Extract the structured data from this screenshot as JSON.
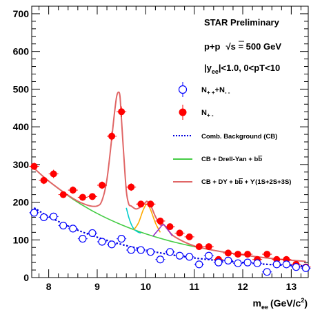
{
  "chart_data": {
    "type": "scatter",
    "xlabel": "m",
    "xlabel_sub": "ee",
    "xlabel_unit": "(GeV/c",
    "xlabel_sup": "2",
    "xlabel_close": ")",
    "xlim": [
      7.65,
      13.35
    ],
    "ylim": [
      0,
      720
    ],
    "x_ticks": [
      "8",
      "9",
      "10",
      "11",
      "12",
      "13"
    ],
    "x_tick_values": [
      8,
      9,
      10,
      11,
      12,
      13
    ],
    "y_ticks": [
      "0",
      "100",
      "200",
      "300",
      "400",
      "500",
      "600",
      "700"
    ],
    "y_tick_values": [
      0,
      100,
      200,
      300,
      400,
      500,
      600,
      700
    ],
    "grid": false,
    "legend_position": "right",
    "annotations": {
      "experiment": "STAR Preliminary",
      "system_prefix": "p+p",
      "sqrt": "√",
      "system_s": "s",
      "system_energy": " = 500 GeV",
      "cut_y_open": "|y",
      "cut_y_sub": "ee",
      "cut_rest": "|<1.0, 0<pT<10"
    },
    "legend": {
      "like_sign": {
        "n1": "N",
        "s1": "+ +",
        "plus": "+N",
        "s2": "- -"
      },
      "unlike_sign": {
        "n": "N",
        "s": "+ -"
      },
      "cb": "Comb. Background (CB)",
      "dy": {
        "prefix": "CB + Drell-Yan + b",
        "bbar": "b"
      },
      "full": {
        "prefix": "CB + DY + b",
        "bbar": "b",
        "mid": " + ",
        "upsilon": "ϒ",
        "suffix": "(1S+2S+3S)"
      }
    },
    "colors": {
      "unlike_sign": "#ff0000",
      "like_sign": "#0000ff",
      "cb": "#0000dd",
      "dy": "#44cc44",
      "full": "#e06666",
      "ups1s": "#00cccc",
      "ups2s": "#ffaa00",
      "ups3s": "#9933cc"
    },
    "series": [
      {
        "name": "N+-",
        "marker": "filled-circle",
        "x": [
          7.7,
          7.9,
          8.1,
          8.3,
          8.5,
          8.7,
          8.9,
          9.1,
          9.3,
          9.5,
          9.7,
          9.9,
          10.1,
          10.3,
          10.5,
          10.7,
          10.9,
          11.1,
          11.3,
          11.5,
          11.7,
          11.9,
          12.1,
          12.3,
          12.5,
          12.7,
          12.9,
          13.1,
          13.3
        ],
        "y": [
          295,
          258,
          275,
          220,
          232,
          213,
          215,
          245,
          375,
          440,
          240,
          195,
          195,
          150,
          135,
          118,
          108,
          82,
          82,
          48,
          65,
          62,
          62,
          48,
          62,
          48,
          48,
          35,
          28
        ],
        "yerr": [
          10,
          10,
          11,
          9,
          10,
          9,
          9,
          10,
          12,
          14,
          10,
          9,
          9,
          8,
          7,
          7,
          6,
          5,
          5,
          4,
          5,
          5,
          5,
          4,
          5,
          4,
          4,
          3,
          3
        ]
      },
      {
        "name": "N++ + N--",
        "marker": "open-circle",
        "x": [
          7.7,
          7.9,
          8.1,
          8.3,
          8.5,
          8.7,
          8.9,
          9.1,
          9.3,
          9.5,
          9.7,
          9.9,
          10.1,
          10.3,
          10.5,
          10.7,
          10.9,
          11.1,
          11.3,
          11.5,
          11.7,
          11.9,
          12.1,
          12.3,
          12.5,
          12.7,
          12.9,
          13.1,
          13.3
        ],
        "y": [
          172,
          160,
          162,
          138,
          130,
          103,
          118,
          95,
          88,
          103,
          73,
          73,
          68,
          48,
          68,
          58,
          55,
          35,
          58,
          40,
          45,
          38,
          40,
          38,
          15,
          35,
          35,
          28,
          25
        ],
        "yerr": [
          10,
          10,
          10,
          9,
          9,
          8,
          8,
          8,
          7,
          8,
          7,
          7,
          7,
          6,
          7,
          6,
          6,
          5,
          6,
          5,
          5,
          5,
          5,
          5,
          4,
          5,
          5,
          4,
          4
        ]
      }
    ],
    "curves": [
      {
        "name": "Comb. Background (CB)",
        "style": "dotted",
        "x": [
          7.7,
          8.0,
          8.5,
          9.0,
          9.5,
          10.0,
          10.5,
          11.0,
          11.5,
          12.0,
          12.5,
          13.0,
          13.3
        ],
        "y": [
          185,
          162,
          131,
          107,
          88,
          73,
          61,
          52,
          45,
          40,
          35,
          32,
          31
        ]
      },
      {
        "name": "CB + Drell-Yan + bb",
        "style": "solid",
        "x": [
          7.7,
          8.0,
          8.5,
          9.0,
          9.5,
          10.0,
          10.5,
          11.0,
          11.5,
          12.0,
          12.5,
          13.0,
          13.3
        ],
        "y": [
          290,
          256,
          208,
          170,
          140,
          116,
          97,
          82,
          70,
          60,
          52,
          46,
          43
        ]
      },
      {
        "name": "CB + DY + bb + Upsilon(1S+2S+3S)",
        "style": "solid",
        "x": [
          7.7,
          8.0,
          8.5,
          8.8,
          9.0,
          9.1,
          9.2,
          9.3,
          9.35,
          9.4,
          9.44,
          9.47,
          9.5,
          9.55,
          9.6,
          9.65,
          9.7,
          9.8,
          9.9,
          10.0,
          10.03,
          10.1,
          10.2,
          10.3,
          10.36,
          10.45,
          10.6,
          11.0,
          11.5,
          12.0,
          12.5,
          13.0,
          13.3
        ],
        "y": [
          290,
          256,
          210,
          192,
          190,
          205,
          260,
          370,
          430,
          480,
          492,
          480,
          420,
          320,
          230,
          195,
          190,
          182,
          188,
          200,
          202,
          192,
          162,
          140,
          142,
          128,
          108,
          84,
          70,
          60,
          52,
          46,
          43
        ]
      },
      {
        "name": "Upsilon 1S",
        "style": "solid",
        "x": [
          9.6,
          9.65,
          9.7,
          9.75,
          9.8,
          9.85,
          9.9
        ],
        "y": [
          185,
          160,
          142,
          130,
          124,
          120,
          118
        ]
      },
      {
        "name": "Upsilon 2S",
        "style": "solid",
        "x": [
          9.75,
          9.85,
          9.95,
          10.03,
          10.1,
          10.2,
          10.3
        ],
        "y": [
          126,
          145,
          180,
          195,
          180,
          145,
          120
        ]
      },
      {
        "name": "Upsilon 3S",
        "style": "solid",
        "x": [
          10.15,
          10.25,
          10.36,
          10.45,
          10.55
        ],
        "y": [
          110,
          125,
          140,
          128,
          110
        ]
      }
    ]
  }
}
